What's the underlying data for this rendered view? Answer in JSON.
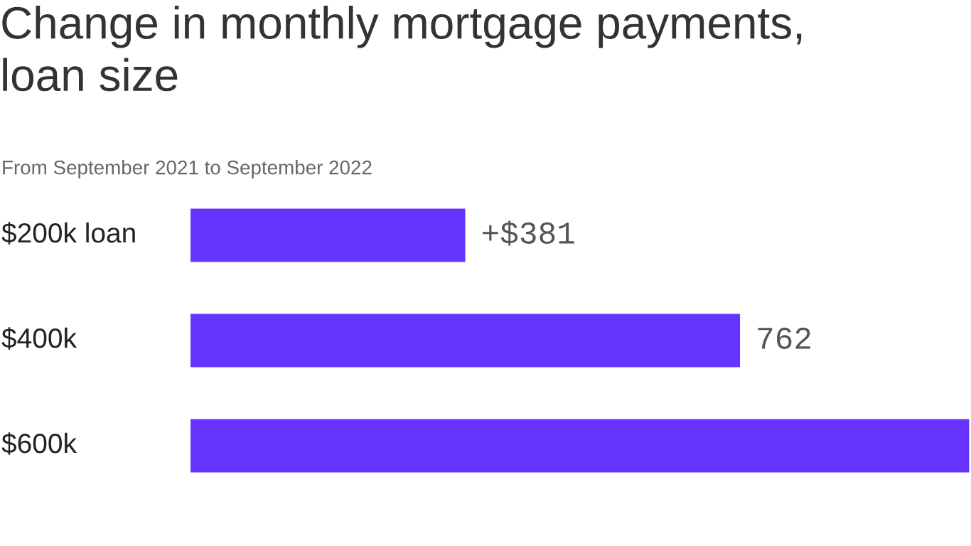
{
  "chart_data": {
    "type": "bar",
    "orientation": "horizontal",
    "title": "Change in monthly mortgage payments,\nloan size",
    "subtitle": "From September 2021 to September 2022",
    "categories": [
      "$200k loan",
      "$400k",
      "$600k"
    ],
    "values": [
      381,
      762,
      1080
    ],
    "value_labels": [
      "+$381",
      "762",
      null
    ],
    "color": "#6633ff"
  }
}
